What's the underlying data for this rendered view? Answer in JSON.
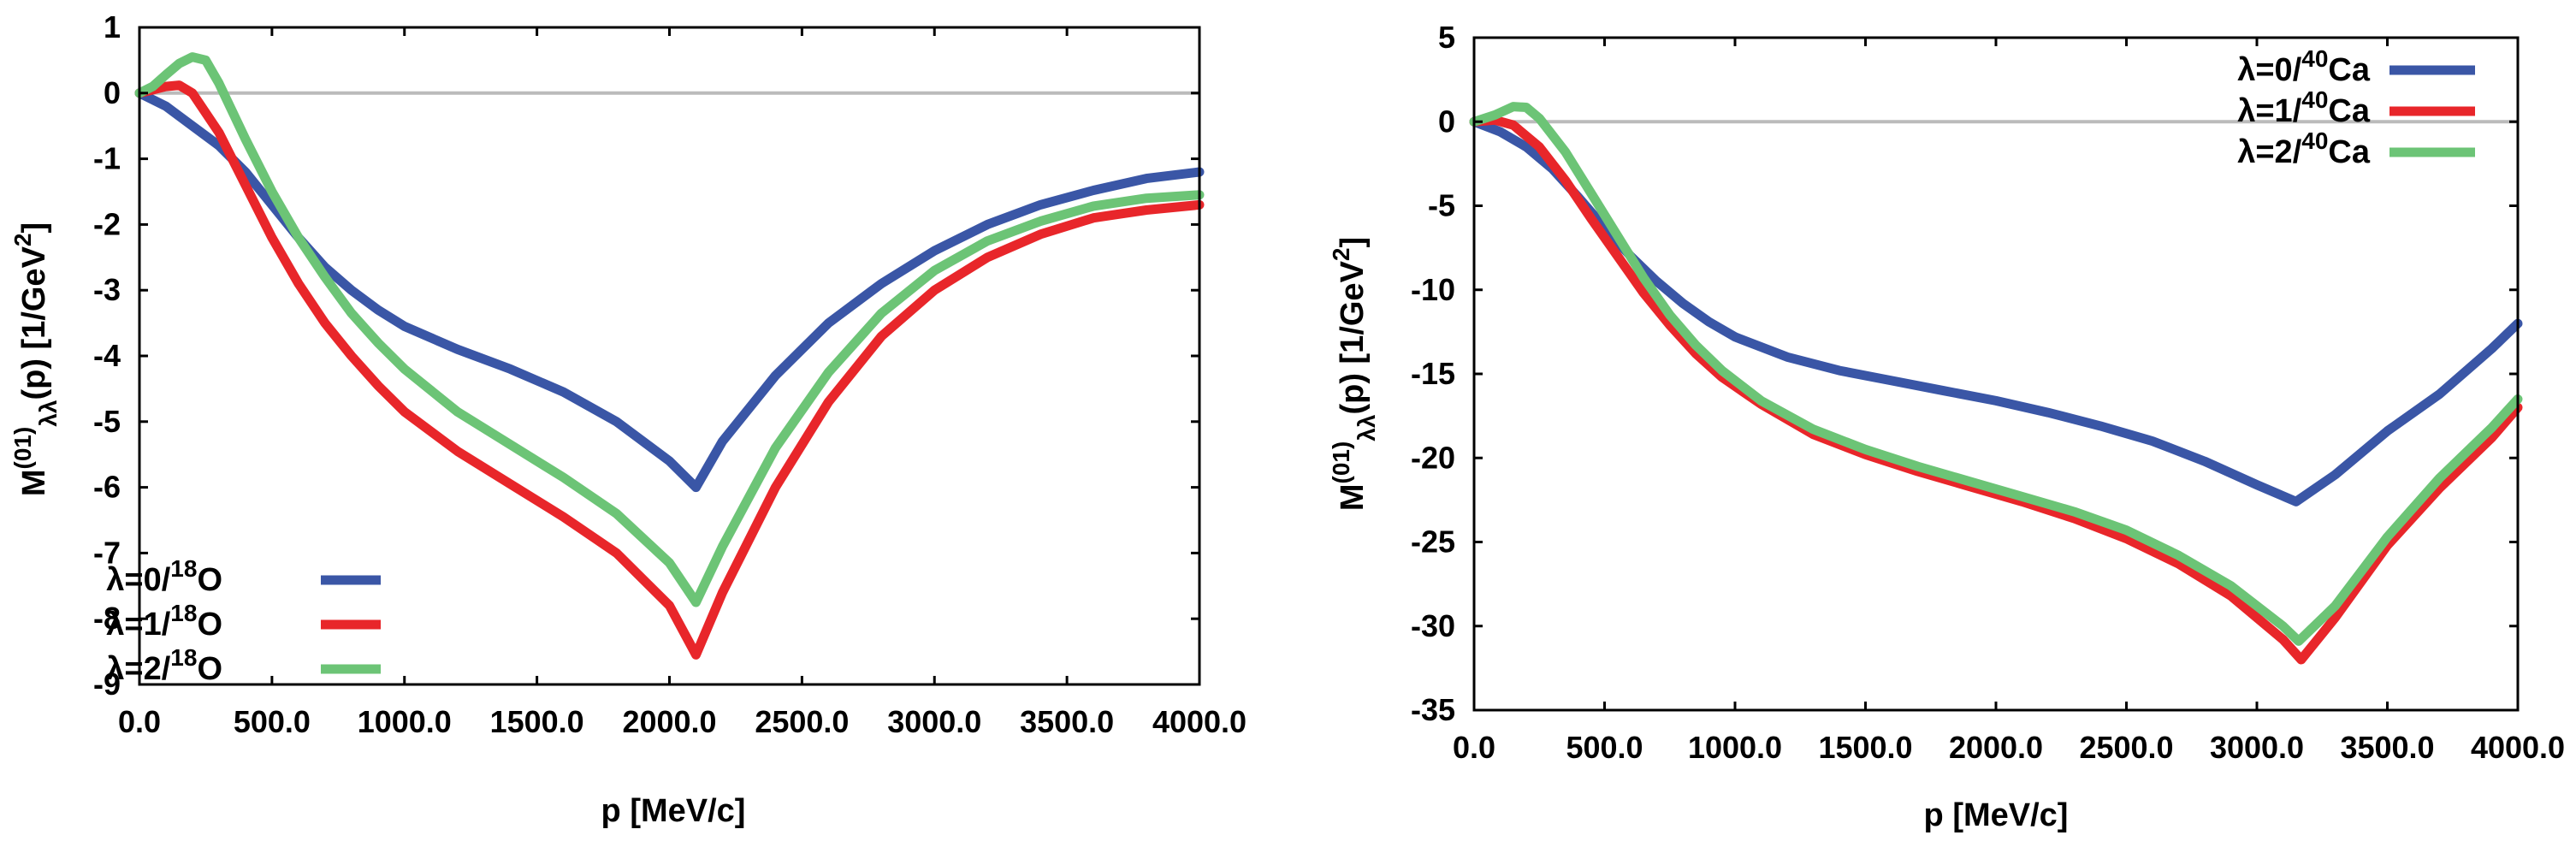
{
  "chart_data": [
    {
      "type": "line",
      "xlabel": "p [MeV/c]",
      "ylabel": {
        "base": "M",
        "sup": "(01)",
        "sub": "λλ",
        "tail": "(p) [1/GeV",
        "sup2": "2",
        "end": "]"
      },
      "xlim": [
        0,
        4000
      ],
      "ylim": [
        -9,
        1
      ],
      "xticks": [
        0,
        500,
        1000,
        1500,
        2000,
        2500,
        3000,
        3500,
        4000
      ],
      "xtick_labels": [
        "0.0",
        "500.0",
        "1000.0",
        "1500.0",
        "2000.0",
        "2500.0",
        "3000.0",
        "3500.0",
        "4000.0"
      ],
      "yticks": [
        1,
        0,
        -1,
        -2,
        -3,
        -4,
        -5,
        -6,
        -7,
        -8,
        -9
      ],
      "ytick_labels": [
        "1",
        "0",
        "-1",
        "-2",
        "-3",
        "-4",
        "-5",
        "-6",
        "-7",
        "-8",
        "-9"
      ],
      "legend_position": "bottom-left",
      "series": [
        {
          "name": "λ=0/18O",
          "label": {
            "pre": "λ=0/",
            "sup": "18",
            "post": "O"
          },
          "color": "#3a56a6",
          "points": [
            [
              0,
              0
            ],
            [
              100,
              -0.2
            ],
            [
              200,
              -0.5
            ],
            [
              300,
              -0.8
            ],
            [
              400,
              -1.2
            ],
            [
              500,
              -1.7
            ],
            [
              600,
              -2.2
            ],
            [
              700,
              -2.65
            ],
            [
              800,
              -3.0
            ],
            [
              900,
              -3.3
            ],
            [
              1000,
              -3.55
            ],
            [
              1200,
              -3.9
            ],
            [
              1400,
              -4.2
            ],
            [
              1600,
              -4.55
            ],
            [
              1800,
              -5.0
            ],
            [
              2000,
              -5.6
            ],
            [
              2100,
              -6.0
            ],
            [
              2200,
              -5.3
            ],
            [
              2400,
              -4.3
            ],
            [
              2600,
              -3.5
            ],
            [
              2800,
              -2.9
            ],
            [
              3000,
              -2.4
            ],
            [
              3200,
              -2.0
            ],
            [
              3400,
              -1.7
            ],
            [
              3600,
              -1.48
            ],
            [
              3800,
              -1.3
            ],
            [
              4000,
              -1.2
            ]
          ]
        },
        {
          "name": "λ=1/18O",
          "label": {
            "pre": "λ=1/",
            "sup": "18",
            "post": "O"
          },
          "color": "#e8262a",
          "points": [
            [
              0,
              0
            ],
            [
              50,
              0.05
            ],
            [
              100,
              0.1
            ],
            [
              150,
              0.12
            ],
            [
              200,
              0.0
            ],
            [
              300,
              -0.6
            ],
            [
              400,
              -1.4
            ],
            [
              500,
              -2.2
            ],
            [
              600,
              -2.9
            ],
            [
              700,
              -3.5
            ],
            [
              800,
              -4.0
            ],
            [
              900,
              -4.45
            ],
            [
              1000,
              -4.85
            ],
            [
              1200,
              -5.45
            ],
            [
              1400,
              -5.95
            ],
            [
              1600,
              -6.45
            ],
            [
              1800,
              -7.0
            ],
            [
              2000,
              -7.8
            ],
            [
              2100,
              -8.55
            ],
            [
              2200,
              -7.6
            ],
            [
              2400,
              -6.0
            ],
            [
              2600,
              -4.7
            ],
            [
              2800,
              -3.7
            ],
            [
              3000,
              -3.0
            ],
            [
              3200,
              -2.5
            ],
            [
              3400,
              -2.15
            ],
            [
              3600,
              -1.9
            ],
            [
              3800,
              -1.78
            ],
            [
              4000,
              -1.7
            ]
          ]
        },
        {
          "name": "λ=2/18O",
          "label": {
            "pre": "λ=2/",
            "sup": "18",
            "post": "O"
          },
          "color": "#6cc476",
          "points": [
            [
              0,
              0
            ],
            [
              50,
              0.1
            ],
            [
              100,
              0.28
            ],
            [
              150,
              0.45
            ],
            [
              200,
              0.55
            ],
            [
              250,
              0.5
            ],
            [
              300,
              0.15
            ],
            [
              400,
              -0.7
            ],
            [
              500,
              -1.5
            ],
            [
              600,
              -2.2
            ],
            [
              700,
              -2.8
            ],
            [
              800,
              -3.35
            ],
            [
              900,
              -3.8
            ],
            [
              1000,
              -4.2
            ],
            [
              1200,
              -4.85
            ],
            [
              1400,
              -5.35
            ],
            [
              1600,
              -5.85
            ],
            [
              1800,
              -6.4
            ],
            [
              2000,
              -7.15
            ],
            [
              2100,
              -7.75
            ],
            [
              2200,
              -6.9
            ],
            [
              2400,
              -5.4
            ],
            [
              2600,
              -4.25
            ],
            [
              2800,
              -3.35
            ],
            [
              3000,
              -2.7
            ],
            [
              3200,
              -2.25
            ],
            [
              3400,
              -1.95
            ],
            [
              3600,
              -1.72
            ],
            [
              3800,
              -1.6
            ],
            [
              4000,
              -1.55
            ]
          ]
        }
      ]
    },
    {
      "type": "line",
      "xlabel": "p [MeV/c]",
      "ylabel": {
        "base": "M",
        "sup": "(01)",
        "sub": "λλ",
        "tail": "(p) [1/GeV",
        "sup2": "2",
        "end": "]"
      },
      "xlim": [
        0,
        4000
      ],
      "ylim": [
        -35,
        5
      ],
      "xticks": [
        0,
        500,
        1000,
        1500,
        2000,
        2500,
        3000,
        3500,
        4000
      ],
      "xtick_labels": [
        "0.0",
        "500.0",
        "1000.0",
        "1500.0",
        "2000.0",
        "2500.0",
        "3000.0",
        "3500.0",
        "4000.0"
      ],
      "yticks": [
        5,
        0,
        -5,
        -10,
        -15,
        -20,
        -25,
        -30,
        -35
      ],
      "ytick_labels": [
        "5",
        "0",
        "-5",
        "-10",
        "-15",
        "-20",
        "-25",
        "-30",
        "-35"
      ],
      "legend_position": "top-right",
      "series": [
        {
          "name": "λ=0/40Ca",
          "label": {
            "pre": "λ=0/",
            "sup": "40",
            "post": "Ca"
          },
          "color": "#3a56a6",
          "points": [
            [
              0,
              0
            ],
            [
              100,
              -0.6
            ],
            [
              200,
              -1.5
            ],
            [
              300,
              -2.8
            ],
            [
              400,
              -4.5
            ],
            [
              500,
              -6.3
            ],
            [
              600,
              -8.0
            ],
            [
              700,
              -9.5
            ],
            [
              800,
              -10.8
            ],
            [
              900,
              -11.9
            ],
            [
              1000,
              -12.8
            ],
            [
              1200,
              -14.0
            ],
            [
              1400,
              -14.8
            ],
            [
              1600,
              -15.4
            ],
            [
              1800,
              -16.0
            ],
            [
              2000,
              -16.6
            ],
            [
              2200,
              -17.3
            ],
            [
              2400,
              -18.1
            ],
            [
              2600,
              -19.0
            ],
            [
              2800,
              -20.2
            ],
            [
              3000,
              -21.6
            ],
            [
              3150,
              -22.6
            ],
            [
              3300,
              -21.0
            ],
            [
              3500,
              -18.4
            ],
            [
              3700,
              -16.2
            ],
            [
              3900,
              -13.5
            ],
            [
              4000,
              -12.0
            ]
          ]
        },
        {
          "name": "λ=1/40Ca",
          "label": {
            "pre": "λ=1/",
            "sup": "40",
            "post": "Ca"
          },
          "color": "#e8262a",
          "points": [
            [
              0,
              0
            ],
            [
              80,
              0.1
            ],
            [
              150,
              -0.2
            ],
            [
              250,
              -1.5
            ],
            [
              350,
              -3.5
            ],
            [
              450,
              -5.8
            ],
            [
              550,
              -8.0
            ],
            [
              650,
              -10.2
            ],
            [
              750,
              -12.1
            ],
            [
              850,
              -13.8
            ],
            [
              950,
              -15.2
            ],
            [
              1100,
              -16.8
            ],
            [
              1300,
              -18.6
            ],
            [
              1500,
              -19.8
            ],
            [
              1700,
              -20.8
            ],
            [
              1900,
              -21.7
            ],
            [
              2100,
              -22.6
            ],
            [
              2300,
              -23.6
            ],
            [
              2500,
              -24.8
            ],
            [
              2700,
              -26.3
            ],
            [
              2900,
              -28.2
            ],
            [
              3100,
              -30.8
            ],
            [
              3170,
              -32.0
            ],
            [
              3300,
              -29.5
            ],
            [
              3500,
              -25.2
            ],
            [
              3700,
              -21.8
            ],
            [
              3900,
              -18.8
            ],
            [
              4000,
              -17.0
            ]
          ]
        },
        {
          "name": "λ=2/40Ca",
          "label": {
            "pre": "λ=2/",
            "sup": "40",
            "post": "Ca"
          },
          "color": "#6cc476",
          "points": [
            [
              0,
              0
            ],
            [
              80,
              0.4
            ],
            [
              150,
              0.9
            ],
            [
              200,
              0.85
            ],
            [
              250,
              0.2
            ],
            [
              350,
              -1.8
            ],
            [
              450,
              -4.3
            ],
            [
              550,
              -6.8
            ],
            [
              650,
              -9.3
            ],
            [
              750,
              -11.5
            ],
            [
              850,
              -13.3
            ],
            [
              950,
              -14.8
            ],
            [
              1100,
              -16.6
            ],
            [
              1300,
              -18.3
            ],
            [
              1500,
              -19.5
            ],
            [
              1700,
              -20.5
            ],
            [
              1900,
              -21.4
            ],
            [
              2100,
              -22.3
            ],
            [
              2300,
              -23.2
            ],
            [
              2500,
              -24.3
            ],
            [
              2700,
              -25.8
            ],
            [
              2900,
              -27.6
            ],
            [
              3100,
              -30.0
            ],
            [
              3160,
              -30.9
            ],
            [
              3300,
              -28.8
            ],
            [
              3500,
              -24.7
            ],
            [
              3700,
              -21.2
            ],
            [
              3900,
              -18.2
            ],
            [
              4000,
              -16.5
            ]
          ]
        }
      ]
    }
  ]
}
